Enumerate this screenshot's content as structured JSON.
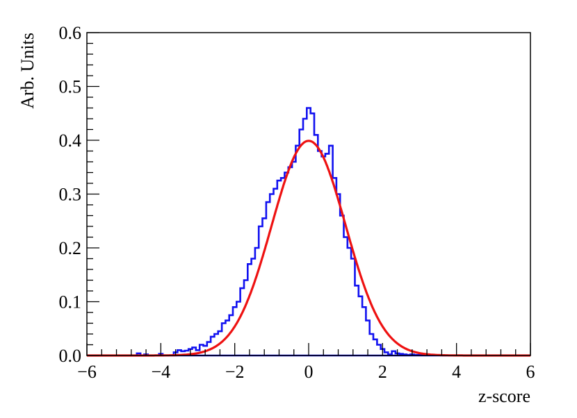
{
  "chart_data": {
    "type": "line",
    "title": "",
    "xlabel": "z-score",
    "ylabel": "Arb. Units",
    "xlim": [
      -6,
      6
    ],
    "ylim": [
      0,
      0.6
    ],
    "x_ticks": [
      "−6",
      "−4",
      "−2",
      "0",
      "2",
      "4",
      "6"
    ],
    "y_ticks": [
      "0.0",
      "0.1",
      "0.2",
      "0.3",
      "0.4",
      "0.5",
      "0.6"
    ],
    "grid": false,
    "legend": "none",
    "series": [
      {
        "kind": "histogram",
        "color": "#1010f0",
        "x": [
          -4.6,
          -4.4,
          -4.0,
          -3.6,
          -3.5,
          -3.4,
          -3.3,
          -3.2,
          -3.1,
          -3.0,
          -2.9,
          -2.8,
          -2.7,
          -2.6,
          -2.5,
          -2.4,
          -2.3,
          -2.2,
          -2.1,
          -2.0,
          -1.9,
          -1.8,
          -1.7,
          -1.6,
          -1.5,
          -1.4,
          -1.3,
          -1.2,
          -1.1,
          -1.0,
          -0.9,
          -0.8,
          -0.7,
          -0.6,
          -0.5,
          -0.4,
          -0.3,
          -0.2,
          -0.1,
          0.0,
          0.1,
          0.2,
          0.3,
          0.4,
          0.5,
          0.6,
          0.7,
          0.8,
          0.9,
          1.0,
          1.1,
          1.2,
          1.3,
          1.4,
          1.5,
          1.6,
          1.7,
          1.8,
          1.9,
          2.0,
          2.1,
          2.2,
          2.3,
          2.4,
          2.5,
          2.6,
          2.7,
          2.8,
          2.9,
          3.0
        ],
        "values": [
          0.004,
          0.002,
          0.003,
          0.006,
          0.01,
          0.008,
          0.009,
          0.012,
          0.015,
          0.01,
          0.02,
          0.018,
          0.025,
          0.035,
          0.04,
          0.045,
          0.06,
          0.065,
          0.075,
          0.09,
          0.1,
          0.125,
          0.14,
          0.17,
          0.18,
          0.2,
          0.24,
          0.255,
          0.285,
          0.3,
          0.31,
          0.325,
          0.33,
          0.34,
          0.35,
          0.36,
          0.39,
          0.42,
          0.44,
          0.46,
          0.45,
          0.41,
          0.38,
          0.37,
          0.375,
          0.39,
          0.33,
          0.3,
          0.26,
          0.22,
          0.2,
          0.18,
          0.13,
          0.11,
          0.09,
          0.065,
          0.04,
          0.03,
          0.02,
          0.012,
          0.006,
          0.002,
          0.008,
          0.004,
          0.003,
          0.002,
          0.001,
          0.002,
          0.001,
          0.001
        ]
      },
      {
        "kind": "curve",
        "color": "#ee1111",
        "mean": 0,
        "sigma": 1,
        "range": [
          -6,
          6
        ]
      }
    ]
  }
}
